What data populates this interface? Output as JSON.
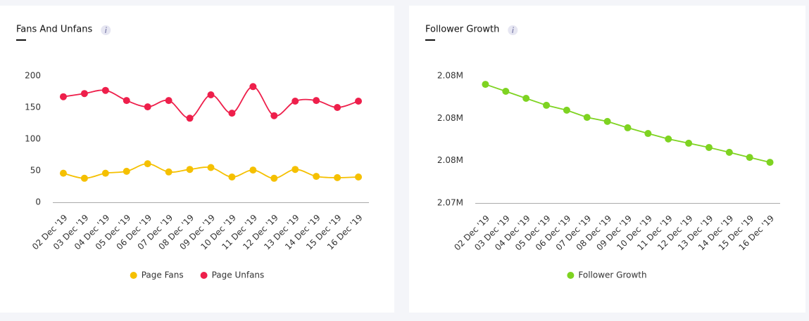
{
  "chart_data": [
    {
      "type": "line",
      "title": "Fans And Unfans",
      "curve": "smooth",
      "categories": [
        "02 Dec '19",
        "03 Dec '19",
        "04 Dec '19",
        "05 Dec '19",
        "06 Dec '19",
        "07 Dec '19",
        "08 Dec '19",
        "09 Dec '19",
        "10 Dec '19",
        "11 Dec '19",
        "12 Dec '19",
        "13 Dec '19",
        "14 Dec '19",
        "15 Dec '19",
        "16 Dec '19"
      ],
      "series": [
        {
          "name": "Page Fans",
          "color": "#f5c000",
          "values": [
            46,
            38,
            46,
            49,
            61,
            48,
            52,
            55,
            40,
            51,
            38,
            52,
            41,
            39,
            40
          ]
        },
        {
          "name": "Page Unfans",
          "color": "#ee1f4b",
          "values": [
            167,
            172,
            177,
            161,
            151,
            161,
            133,
            170,
            141,
            183,
            137,
            160,
            161,
            150,
            160
          ]
        }
      ],
      "ylim": [
        0,
        200
      ],
      "yticks": [
        0,
        50,
        100,
        150,
        200
      ],
      "grid": false
    },
    {
      "type": "line",
      "title": "Follower Growth",
      "curve": "straight",
      "categories": [
        "02 Dec '19",
        "03 Dec '19",
        "04 Dec '19",
        "05 Dec '19",
        "06 Dec '19",
        "07 Dec '19",
        "08 Dec '19",
        "09 Dec '19",
        "10 Dec '19",
        "11 Dec '19",
        "12 Dec '19",
        "13 Dec '19",
        "14 Dec '19",
        "15 Dec '19",
        "16 Dec '19"
      ],
      "series": [
        {
          "name": "Follower Growth",
          "color": "#7ed321",
          "values": [
            2079600,
            2079270,
            2078940,
            2078610,
            2078380,
            2078040,
            2077850,
            2077550,
            2077280,
            2077020,
            2076820,
            2076620,
            2076390,
            2076150,
            2075920
          ]
        }
      ],
      "ylim": [
        2074000,
        2080000
      ],
      "yticks": [
        {
          "value": 2074000,
          "label": "2.07M"
        },
        {
          "value": 2076000,
          "label": "2.08M"
        },
        {
          "value": 2078000,
          "label": "2.08M"
        },
        {
          "value": 2080000,
          "label": "2.08M"
        }
      ],
      "grid": false
    }
  ]
}
